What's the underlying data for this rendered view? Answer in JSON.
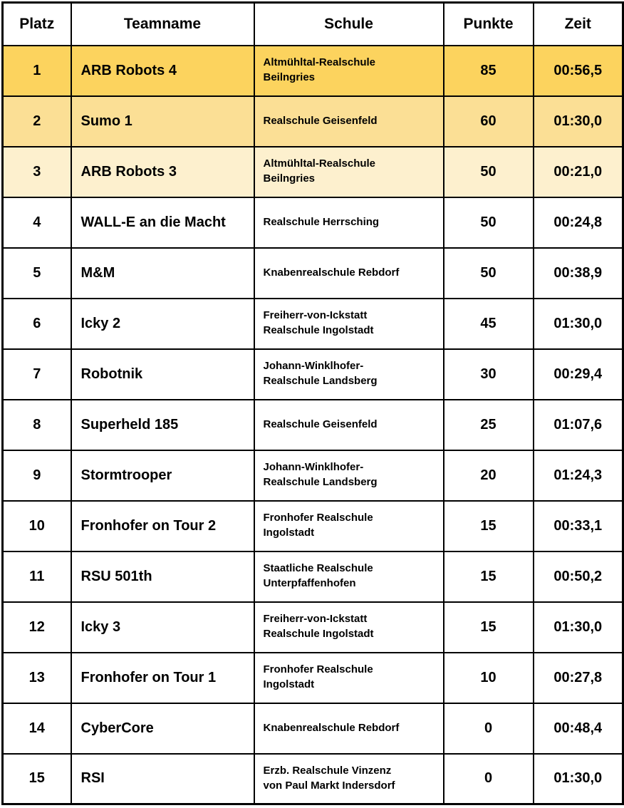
{
  "colors": {
    "border": "#000000",
    "text": "#000000",
    "header_bg": "#FFFFFF",
    "rank1_bg": "#FCD35E",
    "rank2_bg": "#FBDF95",
    "rank3_bg": "#FDF0CE",
    "row_bg": "#FFFFFF"
  },
  "table": {
    "headers": [
      "Platz",
      "Teamname",
      "Schule",
      "Punkte",
      "Zeit"
    ],
    "rows": [
      {
        "platz": "1",
        "teamname": "ARB Robots 4",
        "schule": "Altmühltal-Realschule\nBeilngries",
        "punkte": "85",
        "zeit": "00:56,5",
        "highlight": "rank1"
      },
      {
        "platz": "2",
        "teamname": "Sumo 1",
        "schule": "Realschule Geisenfeld",
        "punkte": "60",
        "zeit": "01:30,0",
        "highlight": "rank2"
      },
      {
        "platz": "3",
        "teamname": "ARB Robots 3",
        "schule": "Altmühltal-Realschule\nBeilngries",
        "punkte": "50",
        "zeit": "00:21,0",
        "highlight": "rank3"
      },
      {
        "platz": "4",
        "teamname": "WALL-E an die Macht",
        "schule": "Realschule Herrsching",
        "punkte": "50",
        "zeit": "00:24,8",
        "highlight": "none"
      },
      {
        "platz": "5",
        "teamname": "M&M",
        "schule": "Knabenrealschule Rebdorf",
        "punkte": "50",
        "zeit": "00:38,9",
        "highlight": "none"
      },
      {
        "platz": "6",
        "teamname": "Icky 2",
        "schule": "Freiherr-von-Ickstatt\nRealschule Ingolstadt",
        "punkte": "45",
        "zeit": "01:30,0",
        "highlight": "none"
      },
      {
        "platz": "7",
        "teamname": "Robotnik",
        "schule": "Johann-Winklhofer-\nRealschule Landsberg",
        "punkte": "30",
        "zeit": "00:29,4",
        "highlight": "none"
      },
      {
        "platz": "8",
        "teamname": "Superheld 185",
        "schule": "Realschule Geisenfeld",
        "punkte": "25",
        "zeit": "01:07,6",
        "highlight": "none"
      },
      {
        "platz": "9",
        "teamname": "Stormtrooper",
        "schule": "Johann-Winklhofer-\nRealschule Landsberg",
        "punkte": "20",
        "zeit": "01:24,3",
        "highlight": "none"
      },
      {
        "platz": "10",
        "teamname": "Fronhofer on Tour 2",
        "schule": "Fronhofer Realschule\nIngolstadt",
        "punkte": "15",
        "zeit": "00:33,1",
        "highlight": "none"
      },
      {
        "platz": "11",
        "teamname": "RSU 501th",
        "schule": "Staatliche Realschule\nUnterpfaffenhofen",
        "punkte": "15",
        "zeit": "00:50,2",
        "highlight": "none"
      },
      {
        "platz": "12",
        "teamname": "Icky 3",
        "schule": "Freiherr-von-Ickstatt\nRealschule Ingolstadt",
        "punkte": "15",
        "zeit": "01:30,0",
        "highlight": "none"
      },
      {
        "platz": "13",
        "teamname": "Fronhofer on Tour 1",
        "schule": "Fronhofer Realschule\nIngolstadt",
        "punkte": "10",
        "zeit": "00:27,8",
        "highlight": "none"
      },
      {
        "platz": "14",
        "teamname": "CyberCore",
        "schule": "Knabenrealschule Rebdorf",
        "punkte": "0",
        "zeit": "00:48,4",
        "highlight": "none"
      },
      {
        "platz": "15",
        "teamname": "RSI",
        "schule": "Erzb. Realschule Vinzenz\nvon Paul Markt Indersdorf",
        "punkte": "0",
        "zeit": "01:30,0",
        "highlight": "none"
      }
    ]
  },
  "chart_data": {
    "type": "table",
    "title": "",
    "columns": [
      "Platz",
      "Teamname",
      "Schule",
      "Punkte",
      "Zeit"
    ],
    "rows": [
      [
        "1",
        "ARB Robots 4",
        "Altmühltal-Realschule Beilngries",
        85,
        "00:56,5"
      ],
      [
        "2",
        "Sumo 1",
        "Realschule Geisenfeld",
        60,
        "01:30,0"
      ],
      [
        "3",
        "ARB Robots 3",
        "Altmühltal-Realschule Beilngries",
        50,
        "00:21,0"
      ],
      [
        "4",
        "WALL-E an die Macht",
        "Realschule Herrsching",
        50,
        "00:24,8"
      ],
      [
        "5",
        "M&M",
        "Knabenrealschule Rebdorf",
        50,
        "00:38,9"
      ],
      [
        "6",
        "Icky 2",
        "Freiherr-von-Ickstatt Realschule Ingolstadt",
        45,
        "01:30,0"
      ],
      [
        "7",
        "Robotnik",
        "Johann-Winklhofer-Realschule Landsberg",
        30,
        "00:29,4"
      ],
      [
        "8",
        "Superheld 185",
        "Realschule Geisenfeld",
        25,
        "01:07,6"
      ],
      [
        "9",
        "Stormtrooper",
        "Johann-Winklhofer-Realschule Landsberg",
        20,
        "01:24,3"
      ],
      [
        "10",
        "Fronhofer on Tour 2",
        "Fronhofer Realschule Ingolstadt",
        15,
        "00:33,1"
      ],
      [
        "11",
        "RSU 501th",
        "Staatliche Realschule Unterpfaffenhofen",
        15,
        "00:50,2"
      ],
      [
        "12",
        "Icky 3",
        "Freiherr-von-Ickstatt Realschule Ingolstadt",
        15,
        "01:30,0"
      ],
      [
        "13",
        "Fronhofer on Tour 1",
        "Fronhofer Realschule Ingolstadt",
        10,
        "00:27,8"
      ],
      [
        "14",
        "CyberCore",
        "Knabenrealschule Rebdorf",
        0,
        "00:48,4"
      ],
      [
        "15",
        "RSI",
        "Erzb. Realschule Vinzenz von Paul Markt Indersdorf",
        0,
        "01:30,0"
      ]
    ],
    "layout": {
      "highlighted_rows": {
        "1": "#FCD35E",
        "2": "#FBDF95",
        "3": "#FDF0CE"
      },
      "grid": true,
      "legend": false
    }
  }
}
